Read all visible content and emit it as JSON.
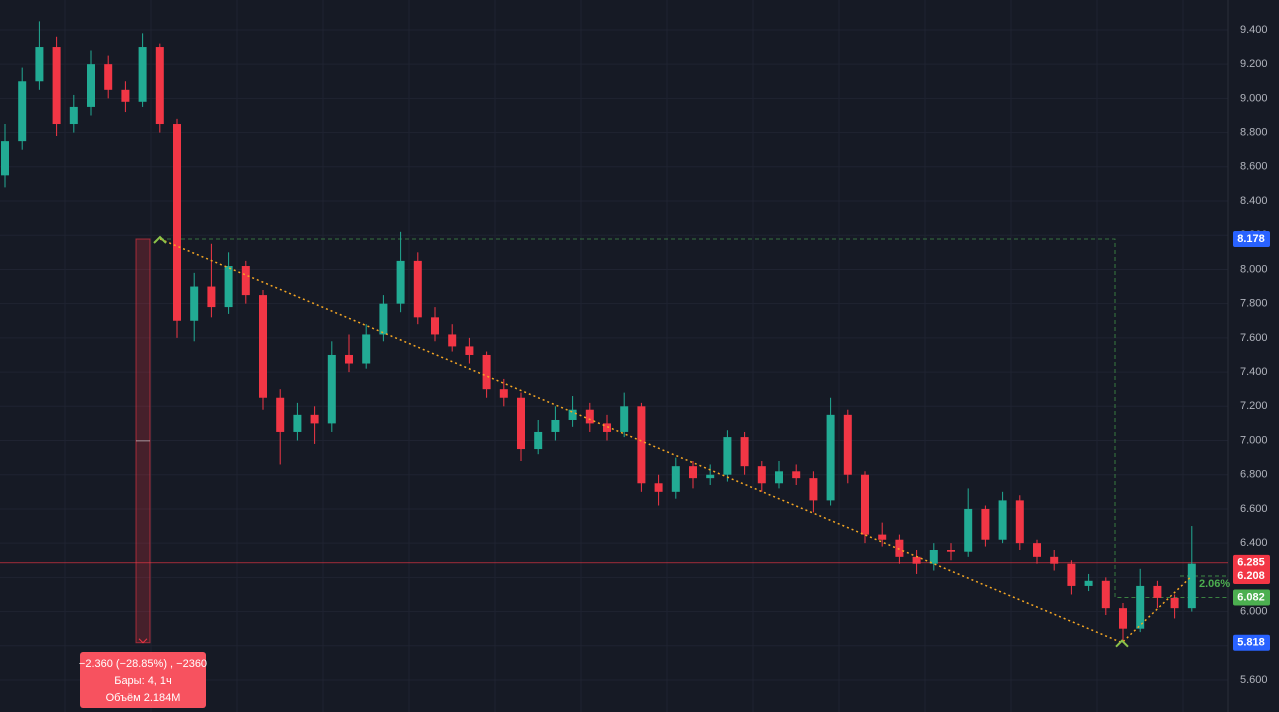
{
  "chart_data": {
    "type": "candlestick",
    "up_color": "#22ab94",
    "down_color": "#f23645",
    "ylim": [
      5.413,
      9.575
    ],
    "yticks": [
      {
        "value": 5.6,
        "label": "5.600"
      },
      {
        "value": 5.8,
        "label": "5.800"
      },
      {
        "value": 6.0,
        "label": "6.000"
      },
      {
        "value": 6.2,
        "label": "6.200"
      },
      {
        "value": 6.4,
        "label": "6.400"
      },
      {
        "value": 6.6,
        "label": "6.600"
      },
      {
        "value": 6.8,
        "label": "6.800"
      },
      {
        "value": 7.0,
        "label": "7.000"
      },
      {
        "value": 7.2,
        "label": "7.200"
      },
      {
        "value": 7.4,
        "label": "7.400"
      },
      {
        "value": 7.6,
        "label": "7.600"
      },
      {
        "value": 7.8,
        "label": "7.800"
      },
      {
        "value": 8.0,
        "label": "8.000"
      },
      {
        "value": 8.2,
        "label": "8.200"
      },
      {
        "value": 8.4,
        "label": "8.400"
      },
      {
        "value": 8.6,
        "label": "8.600"
      },
      {
        "value": 8.8,
        "label": "8.800"
      },
      {
        "value": 9.0,
        "label": "9.000"
      },
      {
        "value": 9.2,
        "label": "9.200"
      },
      {
        "value": 9.4,
        "label": "9.400"
      }
    ],
    "grid": true,
    "open": [
      8.55,
      8.75,
      9.1,
      9.3,
      8.85,
      8.95,
      9.2,
      9.05,
      8.98,
      9.3,
      8.85,
      7.7,
      7.9,
      7.78,
      8.02,
      7.85,
      7.25,
      7.05,
      7.15,
      7.1,
      7.5,
      7.45,
      7.62,
      7.8,
      8.05,
      7.72,
      7.62,
      7.55,
      7.5,
      7.3,
      7.25,
      6.95,
      7.05,
      7.12,
      7.18,
      7.1,
      7.05,
      7.2,
      6.75,
      6.7,
      6.85,
      6.78,
      6.8,
      7.02,
      6.85,
      6.75,
      6.82,
      6.78,
      6.65,
      7.15,
      6.8,
      6.45,
      6.42,
      6.32,
      6.28,
      6.36,
      6.35,
      6.6,
      6.42,
      6.65,
      6.4,
      6.32,
      6.28,
      6.15,
      6.18,
      6.02,
      5.9,
      6.15,
      6.08,
      6.02
    ],
    "high": [
      8.85,
      9.18,
      9.45,
      9.36,
      9.02,
      9.28,
      9.25,
      9.1,
      9.38,
      9.32,
      8.88,
      7.98,
      8.15,
      8.1,
      8.05,
      7.88,
      7.3,
      7.22,
      7.2,
      7.58,
      7.62,
      7.68,
      7.85,
      8.22,
      8.1,
      7.78,
      7.68,
      7.6,
      7.52,
      7.36,
      7.28,
      7.12,
      7.2,
      7.26,
      7.22,
      7.15,
      7.28,
      7.22,
      6.8,
      6.9,
      6.88,
      6.86,
      7.06,
      7.05,
      6.88,
      6.88,
      6.86,
      6.82,
      7.25,
      7.18,
      6.82,
      6.52,
      6.45,
      6.36,
      6.4,
      6.4,
      6.72,
      6.62,
      6.7,
      6.68,
      6.42,
      6.36,
      6.3,
      6.22,
      6.2,
      6.05,
      6.25,
      6.18,
      6.1,
      6.5
    ],
    "low": [
      8.48,
      8.7,
      9.05,
      8.78,
      8.8,
      8.9,
      9.0,
      8.92,
      8.95,
      8.8,
      7.6,
      7.58,
      7.72,
      7.74,
      7.8,
      7.18,
      6.86,
      7.0,
      6.98,
      7.05,
      7.4,
      7.42,
      7.58,
      7.75,
      7.68,
      7.58,
      7.52,
      7.45,
      7.25,
      7.2,
      6.88,
      6.92,
      7.0,
      7.08,
      7.05,
      7.0,
      7.02,
      6.7,
      6.62,
      6.66,
      6.72,
      6.74,
      6.76,
      6.8,
      6.7,
      6.72,
      6.74,
      6.58,
      6.62,
      6.75,
      6.4,
      6.38,
      6.28,
      6.22,
      6.24,
      6.3,
      6.32,
      6.38,
      6.4,
      6.36,
      6.28,
      6.24,
      6.1,
      6.12,
      5.98,
      5.818,
      5.88,
      6.02,
      5.96,
      6.0
    ],
    "close": [
      8.75,
      9.1,
      9.3,
      8.85,
      8.95,
      9.2,
      9.05,
      8.98,
      9.3,
      8.85,
      7.7,
      7.9,
      7.78,
      8.02,
      7.85,
      7.25,
      7.05,
      7.15,
      7.1,
      7.5,
      7.45,
      7.62,
      7.8,
      8.05,
      7.72,
      7.62,
      7.55,
      7.5,
      7.3,
      7.25,
      6.95,
      7.05,
      7.12,
      7.18,
      7.1,
      7.05,
      7.2,
      6.75,
      6.7,
      6.85,
      6.78,
      6.8,
      7.02,
      6.85,
      6.75,
      6.82,
      6.78,
      6.65,
      7.15,
      6.8,
      6.45,
      6.42,
      6.32,
      6.28,
      6.36,
      6.35,
      6.6,
      6.42,
      6.65,
      6.4,
      6.32,
      6.28,
      6.15,
      6.18,
      6.02,
      5.9,
      6.15,
      6.08,
      6.02,
      6.28
    ],
    "price_labels": [
      {
        "value": 8.178,
        "label": "8.178",
        "color": "#2962ff"
      },
      {
        "value": 6.285,
        "label": "6.285",
        "color": "#f23645"
      },
      {
        "value": 6.208,
        "label": "6.208",
        "color": "#f23645"
      },
      {
        "value": 6.082,
        "label": "6.082",
        "color": "#4caf50"
      },
      {
        "value": 5.818,
        "label": "5.818",
        "color": "#2962ff"
      }
    ],
    "percent_label": "2.06%",
    "measure_lines": [
      "−2.360 (−28.85%) , −2360",
      "Бары: 4, 1ч",
      "Объём 2.184M"
    ]
  }
}
